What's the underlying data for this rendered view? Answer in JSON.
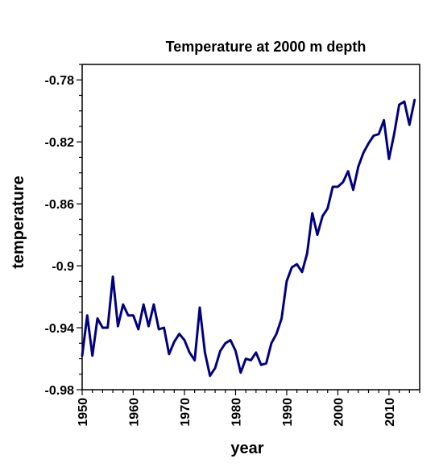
{
  "chart_data": {
    "type": "line",
    "title": "Temperature at 2000 m depth",
    "xlabel": "year",
    "ylabel": "temperature",
    "xlim": [
      1950,
      2016
    ],
    "ylim": [
      -0.98,
      -0.77
    ],
    "x_ticks": [
      1950,
      1960,
      1970,
      1980,
      1990,
      2000,
      2010
    ],
    "x_tick_labels": [
      "1950",
      "1960",
      "1970",
      "1980",
      "1990",
      "2000",
      "2010"
    ],
    "y_ticks": [
      -0.98,
      -0.94,
      -0.9,
      -0.86,
      -0.82,
      -0.78
    ],
    "y_tick_labels": [
      "-0.98",
      "-0.94",
      "-0.9",
      "-0.86",
      "-0.82",
      "-0.78"
    ],
    "grid": false,
    "legend": "none",
    "line_color": "#000080",
    "series": [
      {
        "x": [
          1950,
          1951,
          1952,
          1953,
          1954,
          1955,
          1956,
          1957,
          1958,
          1959,
          1960,
          1961,
          1962,
          1963,
          1964,
          1965,
          1966,
          1967,
          1968,
          1969,
          1970,
          1971,
          1972,
          1973,
          1974,
          1975,
          1976,
          1977,
          1978,
          1979,
          1980,
          1981,
          1982,
          1983,
          1984,
          1985,
          1986,
          1987,
          1988,
          1989,
          1990,
          1991,
          1992,
          1993,
          1994,
          1995,
          1996,
          1997,
          1998,
          1999,
          2000,
          2001,
          2002,
          2003,
          2004,
          2005,
          2006,
          2007,
          2008,
          2009,
          2010,
          2011,
          2012,
          2013,
          2014,
          2015
        ],
        "values": [
          -0.958,
          -0.932,
          -0.958,
          -0.934,
          -0.94,
          -0.94,
          -0.907,
          -0.939,
          -0.925,
          -0.932,
          -0.932,
          -0.941,
          -0.925,
          -0.939,
          -0.925,
          -0.941,
          -0.94,
          -0.957,
          -0.949,
          -0.944,
          -0.948,
          -0.956,
          -0.961,
          -0.927,
          -0.956,
          -0.971,
          -0.966,
          -0.955,
          -0.95,
          -0.948,
          -0.955,
          -0.969,
          -0.96,
          -0.961,
          -0.956,
          -0.964,
          -0.963,
          -0.95,
          -0.944,
          -0.934,
          -0.91,
          -0.901,
          -0.899,
          -0.904,
          -0.892,
          -0.866,
          -0.88,
          -0.868,
          -0.863,
          -0.849,
          -0.849,
          -0.846,
          -0.839,
          -0.851,
          -0.836,
          -0.827,
          -0.821,
          -0.816,
          -0.815,
          -0.806,
          -0.831,
          -0.815,
          -0.796,
          -0.794,
          -0.809,
          -0.793
        ]
      }
    ]
  }
}
